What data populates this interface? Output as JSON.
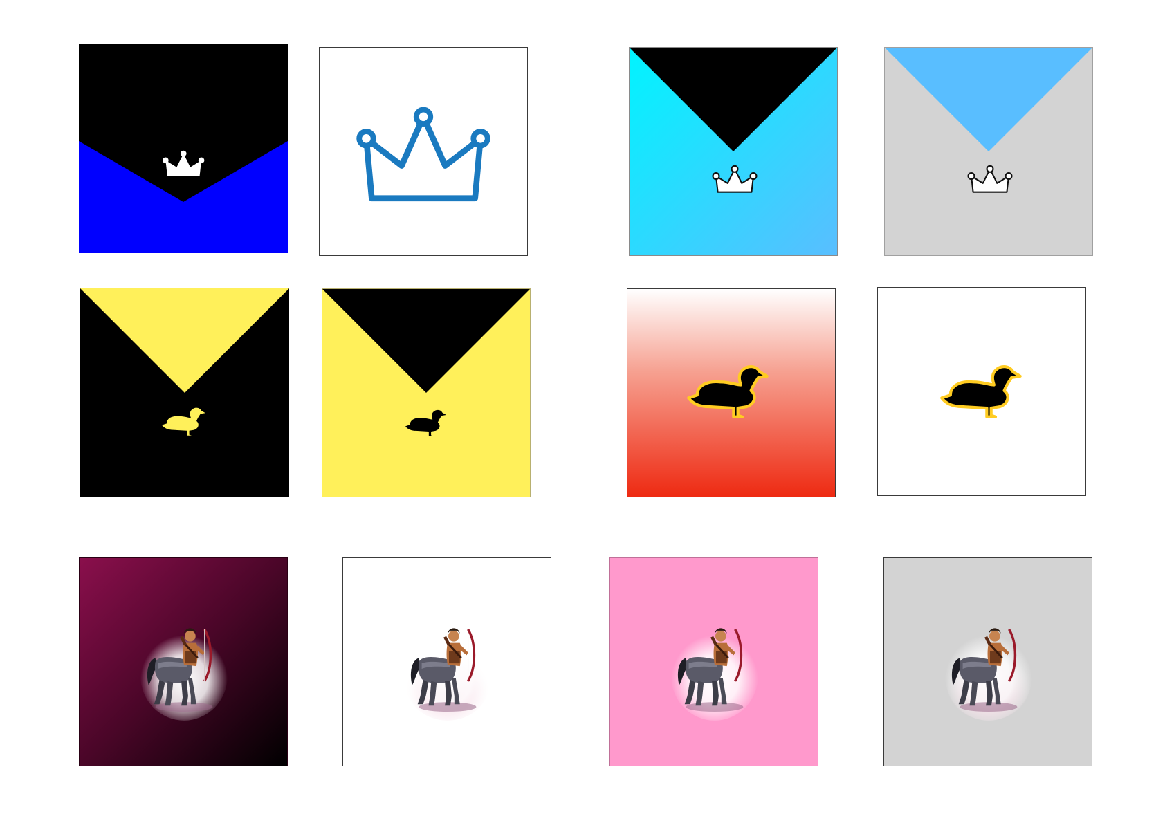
{
  "sheet": {
    "background": "#ffffff",
    "tiles": [
      {
        "name": "crown-blue-black",
        "icon": "crown-icon",
        "background": "#0000ff",
        "top_color": "#000000",
        "icon_color": "#ffffff"
      },
      {
        "name": "crown-outline-white",
        "icon": "crown-outline-icon",
        "background": "#ffffff",
        "icon_color": "#1a7ac0"
      },
      {
        "name": "crown-cyan-gradient",
        "icon": "crown-icon",
        "background": "#00f4ff",
        "background_end": "#59beff",
        "top_color": "#000000",
        "icon_color": "#ffffff"
      },
      {
        "name": "crown-gray",
        "icon": "crown-icon",
        "background": "#d3d3d3",
        "top_color": "#59beff",
        "icon_color": "#ffffff"
      },
      {
        "name": "duck-black-yellow",
        "icon": "duck-icon",
        "background": "#000000",
        "top_color": "#fff05a",
        "icon_color": "#fff05a"
      },
      {
        "name": "duck-yellow-black",
        "icon": "duck-icon",
        "background": "#fff05a",
        "top_color": "#000000",
        "icon_color": "#000000"
      },
      {
        "name": "duck-red-gradient",
        "icon": "duck-icon",
        "background": "#ffffff",
        "background_end": "#ee2a12",
        "icon_color": "#000000",
        "outline_color": "#ffcc22"
      },
      {
        "name": "duck-white",
        "icon": "duck-icon",
        "background": "#ffffff",
        "icon_color": "#000000",
        "outline_color": "#ffcc22"
      },
      {
        "name": "centaur-maroon-gradient",
        "icon": "centaur-archer-icon",
        "background": "#8a0f4c",
        "background_end": "#000000"
      },
      {
        "name": "centaur-white",
        "icon": "centaur-archer-icon",
        "background": "#ffffff"
      },
      {
        "name": "centaur-pink",
        "icon": "centaur-archer-icon",
        "background": "#ff99cc"
      },
      {
        "name": "centaur-gray",
        "icon": "centaur-archer-icon",
        "background": "#d3d3d3"
      }
    ]
  }
}
